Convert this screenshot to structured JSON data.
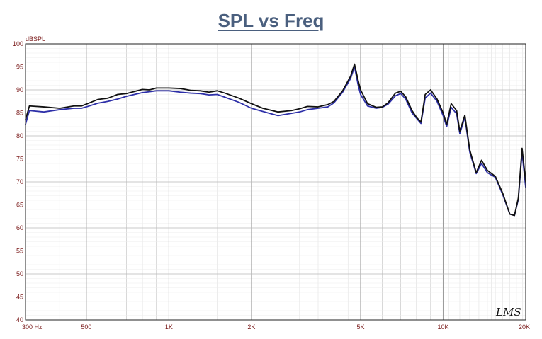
{
  "chart_data": {
    "type": "line",
    "title": "SPL vs Freq",
    "ylabel": "dBSPL",
    "xlabel": "",
    "x_scale": "log",
    "xlim": [
      300,
      20000
    ],
    "ylim": [
      40,
      100
    ],
    "grid": true,
    "watermark": "LMS",
    "ytick_values": [
      40,
      45,
      50,
      55,
      60,
      65,
      70,
      75,
      80,
      85,
      90,
      95,
      100
    ],
    "xtick_labels": [
      {
        "value": 300,
        "label": "300 Hz"
      },
      {
        "value": 500,
        "label": "500"
      },
      {
        "value": 1000,
        "label": "1K"
      },
      {
        "value": 2000,
        "label": "2K"
      },
      {
        "value": 5000,
        "label": "5K"
      },
      {
        "value": 10000,
        "label": "10K"
      },
      {
        "value": 20000,
        "label": "20K"
      }
    ],
    "series": [
      {
        "color": "#111111",
        "points": [
          [
            300,
            83.5
          ],
          [
            310,
            86.5
          ],
          [
            350,
            86.3
          ],
          [
            400,
            86.0
          ],
          [
            450,
            86.5
          ],
          [
            480,
            86.5
          ],
          [
            500,
            86.9
          ],
          [
            550,
            87.9
          ],
          [
            600,
            88.2
          ],
          [
            650,
            89.0
          ],
          [
            700,
            89.2
          ],
          [
            800,
            90.1
          ],
          [
            850,
            90.0
          ],
          [
            900,
            90.4
          ],
          [
            1000,
            90.4
          ],
          [
            1100,
            90.3
          ],
          [
            1200,
            89.9
          ],
          [
            1300,
            89.8
          ],
          [
            1400,
            89.5
          ],
          [
            1500,
            89.8
          ],
          [
            1600,
            89.3
          ],
          [
            1800,
            88.2
          ],
          [
            2000,
            87.0
          ],
          [
            2200,
            86.0
          ],
          [
            2500,
            85.2
          ],
          [
            2800,
            85.5
          ],
          [
            3000,
            85.9
          ],
          [
            3200,
            86.4
          ],
          [
            3500,
            86.3
          ],
          [
            3800,
            86.8
          ],
          [
            4000,
            87.5
          ],
          [
            4300,
            89.8
          ],
          [
            4600,
            93.0
          ],
          [
            4750,
            95.6
          ],
          [
            4900,
            92.0
          ],
          [
            5000,
            90.0
          ],
          [
            5300,
            87.0
          ],
          [
            5700,
            86.2
          ],
          [
            6000,
            86.3
          ],
          [
            6300,
            87.2
          ],
          [
            6700,
            89.3
          ],
          [
            7000,
            89.7
          ],
          [
            7300,
            88.5
          ],
          [
            7700,
            85.5
          ],
          [
            8000,
            84.0
          ],
          [
            8300,
            83.0
          ],
          [
            8600,
            89.0
          ],
          [
            9000,
            90.0
          ],
          [
            9500,
            88.0
          ],
          [
            10000,
            85.0
          ],
          [
            10300,
            82.5
          ],
          [
            10700,
            87.0
          ],
          [
            11200,
            85.5
          ],
          [
            11500,
            81.0
          ],
          [
            12000,
            84.5
          ],
          [
            12500,
            77.0
          ],
          [
            13200,
            72.0
          ],
          [
            13800,
            74.7
          ],
          [
            14500,
            72.5
          ],
          [
            15500,
            71.2
          ],
          [
            16500,
            67.5
          ],
          [
            17500,
            63.0
          ],
          [
            18200,
            62.7
          ],
          [
            18800,
            66.5
          ],
          [
            19400,
            77.3
          ],
          [
            20000,
            70.0
          ]
        ]
      },
      {
        "color": "#2d2fa8",
        "points": [
          [
            300,
            82.5
          ],
          [
            310,
            85.5
          ],
          [
            350,
            85.2
          ],
          [
            400,
            85.7
          ],
          [
            450,
            86.0
          ],
          [
            480,
            86.0
          ],
          [
            500,
            86.3
          ],
          [
            550,
            87.1
          ],
          [
            600,
            87.5
          ],
          [
            650,
            88.0
          ],
          [
            700,
            88.6
          ],
          [
            800,
            89.4
          ],
          [
            850,
            89.6
          ],
          [
            900,
            89.8
          ],
          [
            1000,
            89.8
          ],
          [
            1100,
            89.5
          ],
          [
            1200,
            89.3
          ],
          [
            1300,
            89.2
          ],
          [
            1400,
            88.9
          ],
          [
            1500,
            89.0
          ],
          [
            1600,
            88.4
          ],
          [
            1800,
            87.3
          ],
          [
            2000,
            86.0
          ],
          [
            2200,
            85.3
          ],
          [
            2500,
            84.4
          ],
          [
            2800,
            84.9
          ],
          [
            3000,
            85.2
          ],
          [
            3200,
            85.7
          ],
          [
            3500,
            86.0
          ],
          [
            3800,
            86.3
          ],
          [
            4000,
            87.2
          ],
          [
            4300,
            89.5
          ],
          [
            4600,
            92.5
          ],
          [
            4750,
            95.0
          ],
          [
            4900,
            91.0
          ],
          [
            5000,
            89.0
          ],
          [
            5300,
            86.5
          ],
          [
            5700,
            86.0
          ],
          [
            6000,
            86.2
          ],
          [
            6300,
            86.9
          ],
          [
            6700,
            88.7
          ],
          [
            7000,
            89.2
          ],
          [
            7300,
            88.0
          ],
          [
            7700,
            85.0
          ],
          [
            8000,
            83.8
          ],
          [
            8300,
            82.7
          ],
          [
            8600,
            88.2
          ],
          [
            9000,
            89.3
          ],
          [
            9500,
            87.5
          ],
          [
            10000,
            84.4
          ],
          [
            10300,
            82.0
          ],
          [
            10700,
            86.2
          ],
          [
            11200,
            84.8
          ],
          [
            11500,
            80.5
          ],
          [
            12000,
            84.0
          ],
          [
            12500,
            76.5
          ],
          [
            13200,
            71.8
          ],
          [
            13800,
            74.0
          ],
          [
            14500,
            72.0
          ],
          [
            15500,
            71.0
          ],
          [
            16500,
            67.2
          ],
          [
            17500,
            63.0
          ],
          [
            18200,
            62.7
          ],
          [
            18800,
            66.2
          ],
          [
            19400,
            76.4
          ],
          [
            20000,
            68.8
          ]
        ]
      }
    ]
  }
}
